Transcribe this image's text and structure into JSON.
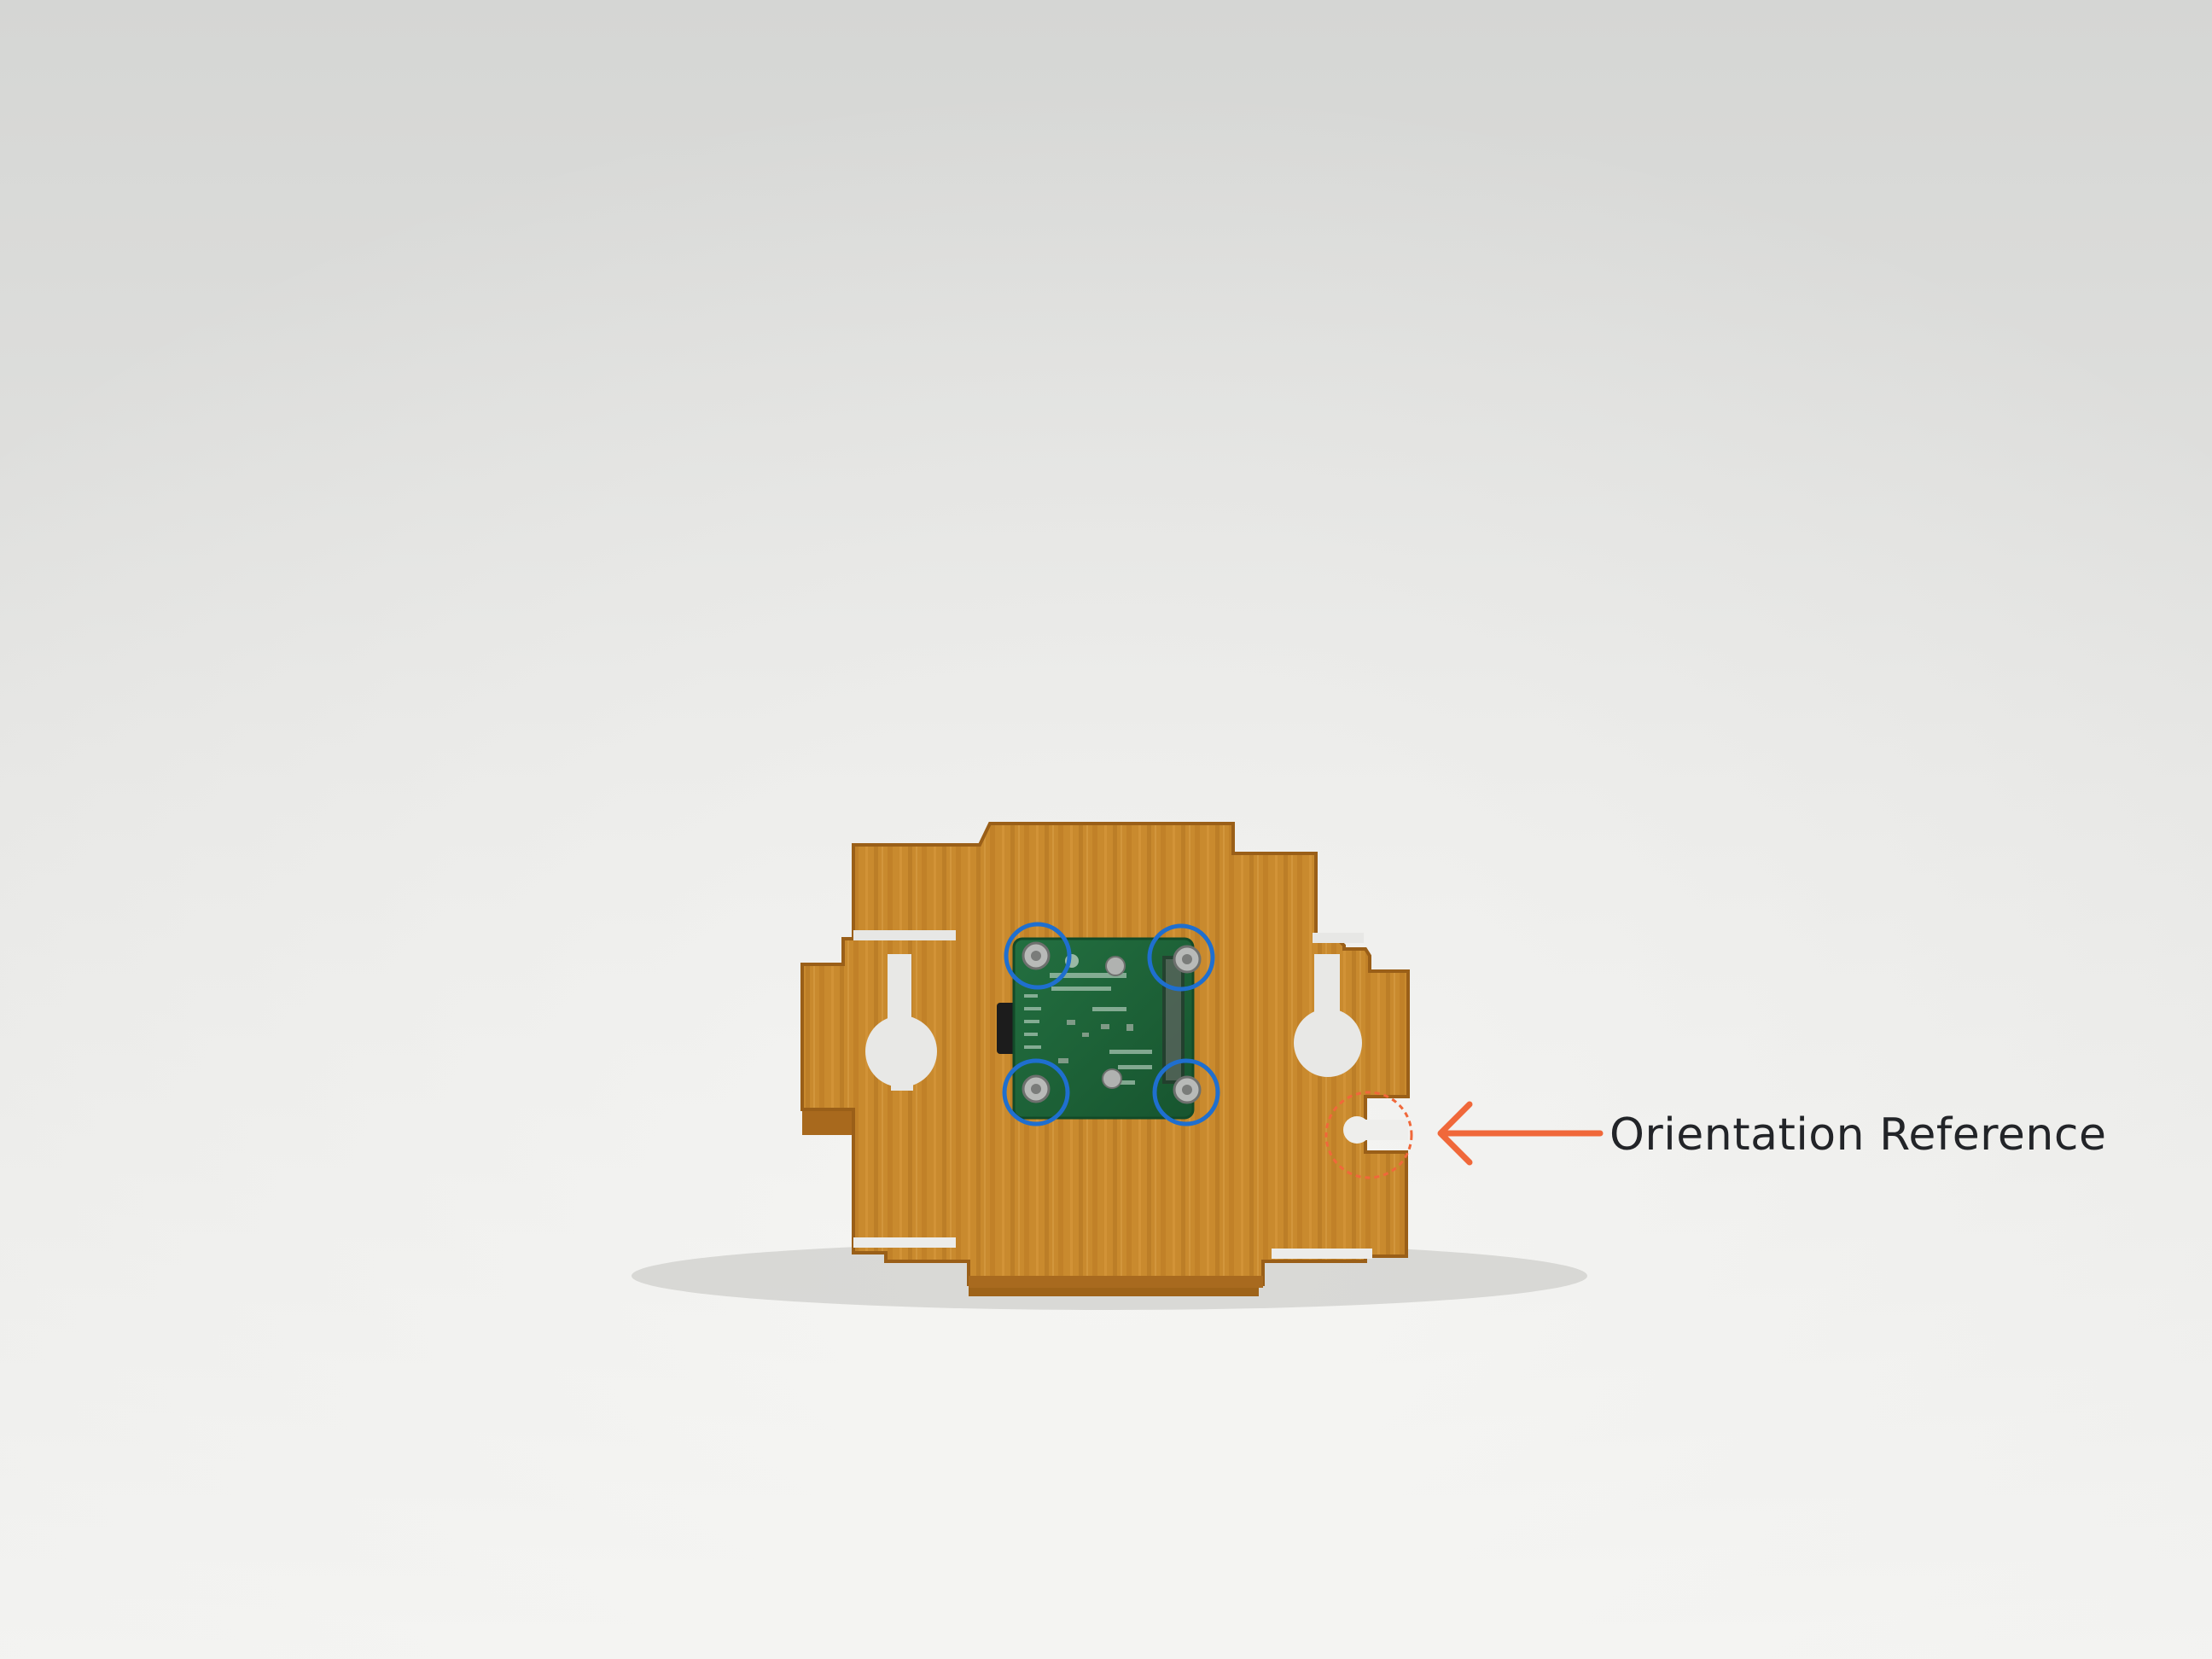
{
  "annotation": {
    "label": "Orientation Reference"
  },
  "colors": {
    "background_top": "#dadad8",
    "background_bottom": "#f1f1ef",
    "wood": "#c98a2e",
    "wood_dark": "#a8691d",
    "pcb": "#1f6b3c",
    "marker_blue": "#1f6fcf",
    "marker_orange": "#f0683a",
    "label_text": "#222428"
  },
  "icons": {
    "mount_screw": "screw-icon",
    "arrow": "arrow-left-icon"
  }
}
